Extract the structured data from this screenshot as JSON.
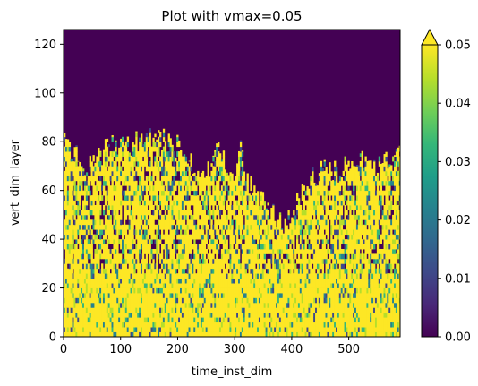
{
  "chart_data": {
    "type": "heatmap",
    "title": "Plot with vmax=0.05",
    "xlabel": "time_inst_dim",
    "ylabel": "vert_dim_layer",
    "xlim": [
      0,
      590
    ],
    "ylim": [
      0,
      126
    ],
    "x_ticks": [
      0,
      100,
      200,
      300,
      400,
      500
    ],
    "y_ticks": [
      0,
      20,
      40,
      60,
      80,
      100,
      120
    ],
    "colorbar": {
      "vmin": 0.0,
      "vmax": 0.05,
      "extend": "max",
      "ticks": [
        "0.00",
        "0.01",
        "0.02",
        "0.03",
        "0.04",
        "0.05"
      ],
      "colormap": "viridis",
      "colors": [
        "#440154",
        "#482878",
        "#3e4989",
        "#31688e",
        "#26828e",
        "#1f9e89",
        "#35b779",
        "#6ece58",
        "#b5de2b",
        "#fde725"
      ]
    },
    "description_values": {
      "layers_above_data_top": 0.0,
      "approx_data_top_layer_range": [
        45,
        82
      ],
      "near_surface_layers_below": 25
    },
    "envelope_top": [
      {
        "x": 0,
        "y": 82
      },
      {
        "x": 10,
        "y": 78
      },
      {
        "x": 25,
        "y": 72
      },
      {
        "x": 45,
        "y": 70
      },
      {
        "x": 60,
        "y": 74
      },
      {
        "x": 80,
        "y": 78
      },
      {
        "x": 100,
        "y": 80
      },
      {
        "x": 120,
        "y": 79
      },
      {
        "x": 140,
        "y": 82
      },
      {
        "x": 160,
        "y": 82
      },
      {
        "x": 180,
        "y": 80
      },
      {
        "x": 200,
        "y": 78
      },
      {
        "x": 215,
        "y": 73
      },
      {
        "x": 230,
        "y": 70
      },
      {
        "x": 245,
        "y": 67
      },
      {
        "x": 260,
        "y": 70
      },
      {
        "x": 270,
        "y": 80
      },
      {
        "x": 280,
        "y": 74
      },
      {
        "x": 295,
        "y": 65
      },
      {
        "x": 310,
        "y": 78
      },
      {
        "x": 320,
        "y": 64
      },
      {
        "x": 335,
        "y": 58
      },
      {
        "x": 350,
        "y": 55
      },
      {
        "x": 365,
        "y": 50
      },
      {
        "x": 380,
        "y": 46
      },
      {
        "x": 395,
        "y": 50
      },
      {
        "x": 410,
        "y": 55
      },
      {
        "x": 425,
        "y": 62
      },
      {
        "x": 440,
        "y": 66
      },
      {
        "x": 460,
        "y": 70
      },
      {
        "x": 480,
        "y": 68
      },
      {
        "x": 500,
        "y": 72
      },
      {
        "x": 520,
        "y": 74
      },
      {
        "x": 540,
        "y": 70
      },
      {
        "x": 560,
        "y": 72
      },
      {
        "x": 575,
        "y": 74
      },
      {
        "x": 590,
        "y": 74
      }
    ]
  }
}
